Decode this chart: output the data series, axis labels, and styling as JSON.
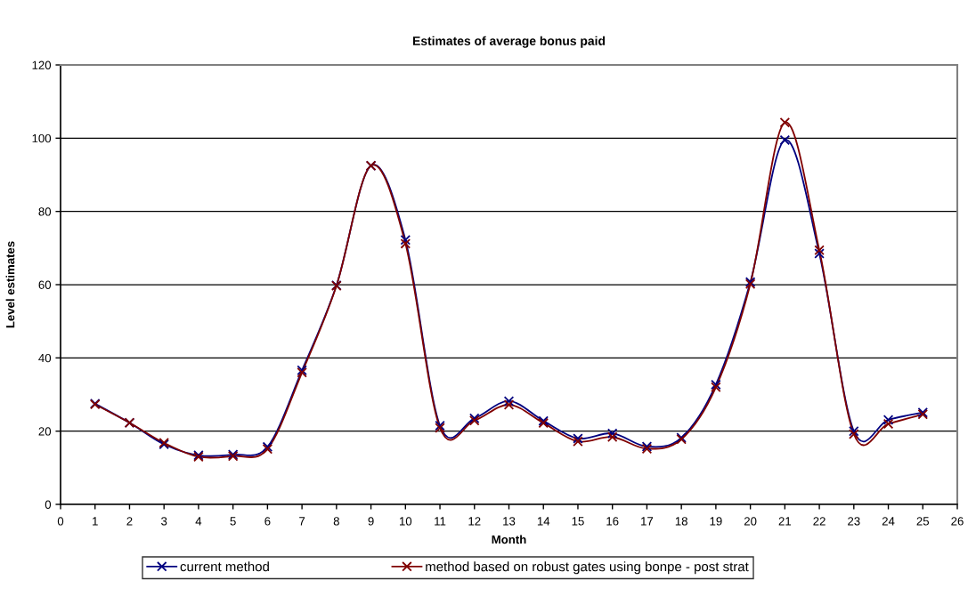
{
  "chart_data": {
    "type": "line",
    "title": "Estimates of average bonus paid",
    "xlabel": "Month",
    "ylabel": "Level estimates",
    "x": [
      1,
      2,
      3,
      4,
      5,
      6,
      7,
      8,
      9,
      10,
      11,
      12,
      13,
      14,
      15,
      16,
      17,
      18,
      19,
      20,
      21,
      22,
      23,
      24,
      25
    ],
    "series": [
      {
        "name": "current method",
        "color": "#000080",
        "values": [
          27.5,
          22.3,
          16.4,
          13.4,
          13.6,
          15.7,
          36.6,
          59.8,
          92.5,
          72.2,
          21.5,
          23.5,
          28.2,
          22.8,
          18.0,
          19.4,
          15.8,
          18.2,
          32.7,
          60.7,
          99.5,
          68.5,
          20.0,
          23.1,
          25.1
        ]
      },
      {
        "name": "method based on robust gates using bonpe - post strat",
        "color": "#800000",
        "values": [
          27.3,
          22.3,
          16.8,
          13.0,
          13.2,
          15.1,
          36.0,
          59.7,
          92.5,
          71.2,
          20.9,
          22.9,
          27.2,
          22.2,
          17.2,
          18.4,
          15.2,
          17.8,
          32.0,
          60.2,
          104.3,
          69.4,
          19.2,
          22.0,
          24.6
        ]
      }
    ],
    "xlim": [
      0,
      26
    ],
    "xticks": [
      0,
      1,
      2,
      3,
      4,
      5,
      6,
      7,
      8,
      9,
      10,
      11,
      12,
      13,
      14,
      15,
      16,
      17,
      18,
      19,
      20,
      21,
      22,
      23,
      24,
      25,
      26
    ],
    "ylim": [
      0,
      120
    ],
    "yticks": [
      0,
      20,
      40,
      60,
      80,
      100,
      120
    ],
    "grid": "y",
    "legend": "bottom",
    "marker": "cross",
    "line_style": "solid"
  }
}
